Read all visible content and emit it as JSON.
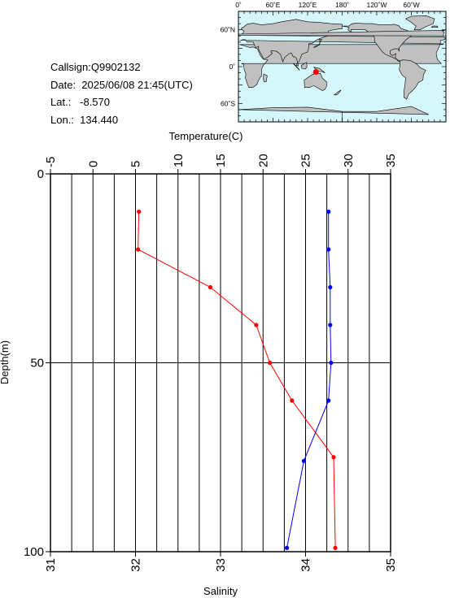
{
  "station": {
    "callsign": "Callsign:Q9902132",
    "date": "Date:  2025/06/08 21:45(UTC)",
    "lat": "Lat.:   -8.570",
    "lon": "Lon.:  134.440"
  },
  "map": {
    "lon_labels": [
      "0˚",
      "60˚E",
      "120˚E",
      "180˚",
      "120˚W",
      "60˚W"
    ],
    "lat_labels": [
      "60˚N",
      "0˚",
      "60˚S"
    ],
    "ocean_color": "#d5f6fb",
    "land_color": "#c0c0c0",
    "marker_color": "#ff0000",
    "marker": {
      "lat": -8.57,
      "lon": 134.44
    }
  },
  "chart_data": {
    "type": "line",
    "y": {
      "label": "Depth(m)",
      "range": [
        0,
        100
      ],
      "inverted": true,
      "ticks": [
        "0",
        "50",
        "100"
      ]
    },
    "x_top": {
      "label": "Temperature(C)",
      "range": [
        -5,
        35
      ],
      "ticks": [
        "-5",
        "0",
        "5",
        "10",
        "15",
        "20",
        "25",
        "30",
        "35"
      ]
    },
    "x_bottom": {
      "label": "Salinity",
      "range": [
        31,
        35
      ],
      "ticks": [
        "31",
        "32",
        "33",
        "34",
        "35"
      ]
    },
    "grid": "vertical every 2.5°C, horizontal at 50 m",
    "series": [
      {
        "axis": "temperature",
        "color": "#ff0000",
        "points": [
          {
            "value": 5.4,
            "depth": 10
          },
          {
            "value": 5.3,
            "depth": 20
          },
          {
            "value": 13.8,
            "depth": 30
          },
          {
            "value": 19.2,
            "depth": 40
          },
          {
            "value": 20.8,
            "depth": 50
          },
          {
            "value": 23.4,
            "depth": 60
          },
          {
            "value": 28.3,
            "depth": 75
          },
          {
            "value": 28.5,
            "depth": 99
          }
        ]
      },
      {
        "axis": "salinity",
        "color": "#0000ff",
        "points": [
          {
            "value": 34.27,
            "depth": 10
          },
          {
            "value": 34.27,
            "depth": 20
          },
          {
            "value": 34.29,
            "depth": 30
          },
          {
            "value": 34.29,
            "depth": 40
          },
          {
            "value": 34.3,
            "depth": 50
          },
          {
            "value": 34.27,
            "depth": 60
          },
          {
            "value": 33.98,
            "depth": 76
          },
          {
            "value": 33.78,
            "depth": 99
          }
        ]
      }
    ]
  }
}
